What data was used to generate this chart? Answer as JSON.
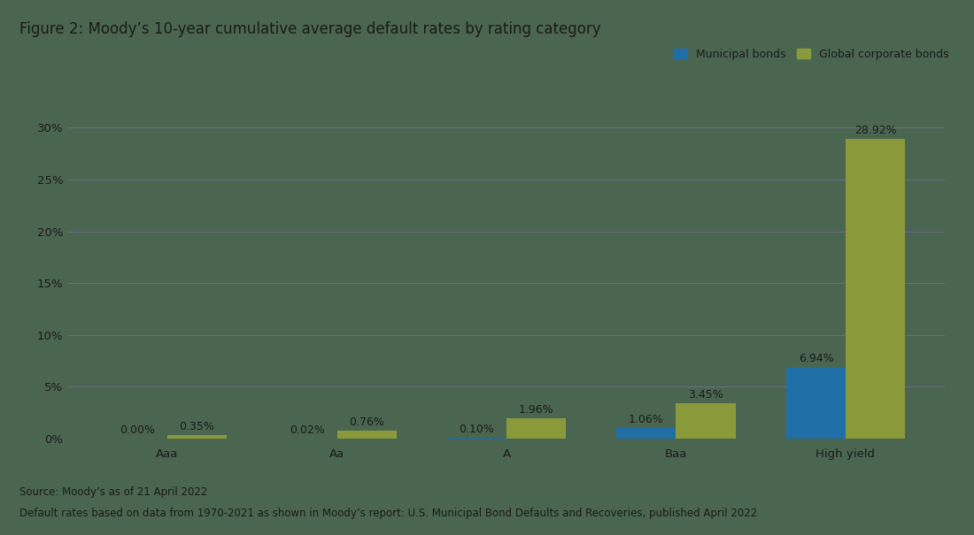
{
  "title": "Figure 2: Moody’s 10-year cumulative average default rates by rating category",
  "categories": [
    "Aaa",
    "Aa",
    "A",
    "Baa",
    "High yield"
  ],
  "muni_values": [
    0.0,
    0.02,
    0.1,
    1.06,
    6.94
  ],
  "corp_values": [
    0.35,
    0.76,
    1.96,
    3.45,
    28.92
  ],
  "muni_labels": [
    "0.00%",
    "0.02%",
    "0.10%",
    "1.06%",
    "6.94%"
  ],
  "corp_labels": [
    "0.35%",
    "0.76%",
    "1.96%",
    "3.45%",
    "28.92%"
  ],
  "muni_color": "#1F6EA6",
  "corp_color": "#8A9A3B",
  "background_color": "#4A6650",
  "plot_bg_color": "#4A6650",
  "legend_muni": "Municipal bonds",
  "legend_corp": "Global corporate bonds",
  "yticks": [
    0,
    5,
    10,
    15,
    20,
    25,
    30
  ],
  "ylim": [
    0,
    32
  ],
  "source_line1": "Source: Moody’s as of 21 April 2022",
  "source_line2": "Default rates based on data from 1970-2021 as shown in Moody’s report: U.S. Municipal Bond Defaults and Recoveries, published April 2022",
  "bar_width": 0.35,
  "title_fontsize": 12,
  "label_fontsize": 9,
  "tick_fontsize": 9.5,
  "legend_fontsize": 9,
  "source_fontsize": 8.5,
  "grid_color": "#6B6B8A",
  "text_color": "#1a1a1a",
  "grid_linewidth": 0.7
}
